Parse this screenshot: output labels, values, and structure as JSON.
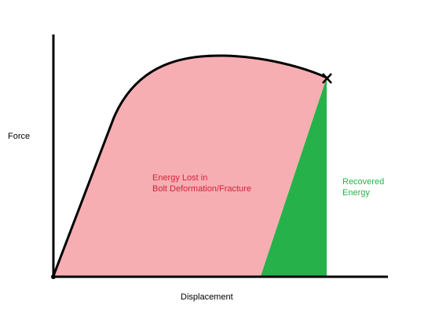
{
  "axes": {
    "y_label": "Force",
    "x_label": "Displacement"
  },
  "regions": {
    "energy_lost": {
      "line1": "Energy Lost in",
      "line2": "Bolt Deformation/Fracture",
      "color": "#f7aeb2",
      "text_color": "#d0223a"
    },
    "recovered_energy": {
      "line1": "Recovered",
      "line2": "Energy",
      "color": "#27b14b",
      "text_color": "#27b14b"
    }
  },
  "marker": {
    "icon": "fracture-x-icon"
  }
}
